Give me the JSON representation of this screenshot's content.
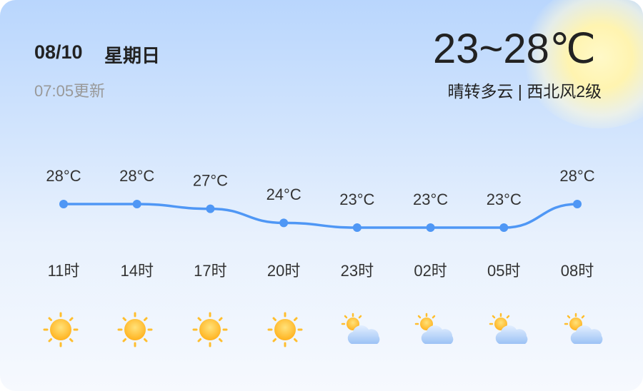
{
  "header": {
    "date": "08/10",
    "weekday": "星期日",
    "updated": "07:05更新",
    "temp_range": "23~28℃",
    "description": "晴转多云 | 西北风2级"
  },
  "chart_data": {
    "type": "line",
    "categories": [
      "11时",
      "14时",
      "17时",
      "20时",
      "23时",
      "02时",
      "05时",
      "08时"
    ],
    "values": [
      28,
      28,
      27,
      24,
      23,
      23,
      23,
      28
    ],
    "value_labels": [
      "28°C",
      "28°C",
      "27°C",
      "24°C",
      "23°C",
      "23°C",
      "23°C",
      "28°C"
    ],
    "color": "#4f97f5"
  }
}
